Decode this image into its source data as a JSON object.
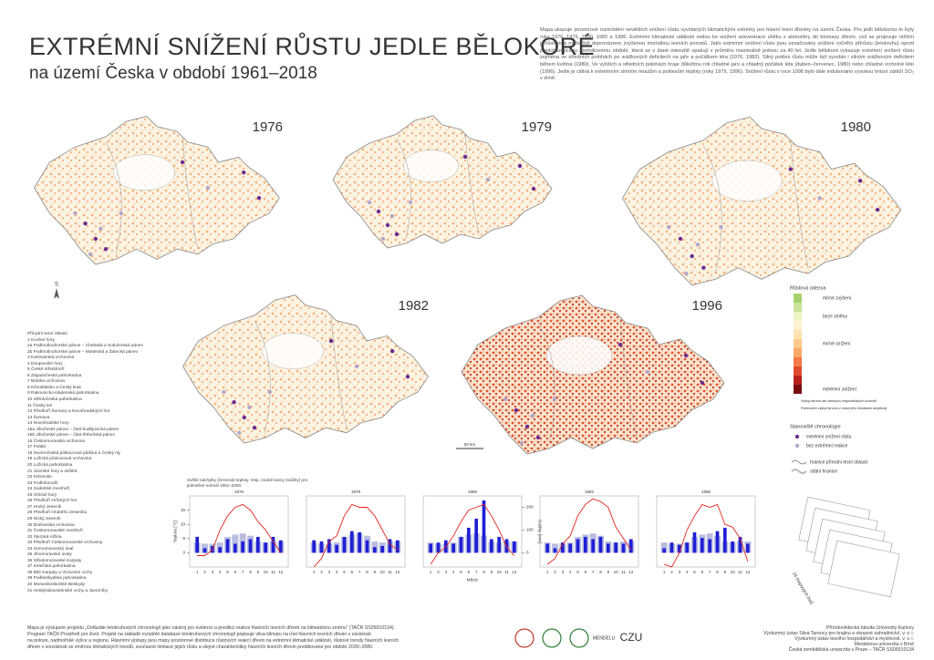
{
  "header": {
    "title": "EXTRÉMNÍ SNÍŽENÍ RŮSTU JEDLE BĚLOKORÉ",
    "subtitle": "na území Česka v období 1961–2018"
  },
  "description": "Mapa ukazuje prostorové rozmístění nevětších snížení růstu vyvolaných klimatickými extrémy pro hlavní lesní dřeviny na území Česka. Pro jedli bělokorou to byly roky 1976, 1979, 1980, 1982 a 1996. Extrémní klimatické události vedou ke snížení sekvestrace uhlíku z atmosféry do biomasy dřevin, což se projevuje nižším přírůstem a může být doprovázeno zvýšenou mortalitou lesních porostů. Jako extrémní snížení růstu jsou označovány snížení ročního přírůstu (letokruhu) oproti předcházejícímu normálovému období, která se v dané intenzitě opakují v průměru maximálně jednou za 40 let. Jedle bělokorá vykazuje extrémní snížení růstu zejména ve středních polohách po srážkových deficitech na jaře a počátkem léta (1976, 1982). Silný pokles růstu může být vyvolán i silným srážkovým deficitem během května (1980). Ve vyšších a středních polohách hraje důležitou roli chladné jaro a chladný počátek léta (duben–červenec, 1980) nebo chladné vrcholné léto (1996). Jedle je citlivá k extrémním zimním mrazům a poklesům teploty (roky 1979, 1996). Snížení růstu v roce 1996 bylo dále indukováno vysokou imisní zátěží SO₂ v zimě.",
  "maps": [
    {
      "year": "1976"
    },
    {
      "year": "1979"
    },
    {
      "year": "1980"
    },
    {
      "year": "1982"
    },
    {
      "year": "1996"
    }
  ],
  "north": "S",
  "scale": "50 km",
  "regions": {
    "title": "Přírodní lesní oblasti",
    "items": [
      "1 Krušné hory",
      "2a Podkrušnohorské pánve – Chebská a Sokolovská pánev",
      "2b Podkrušnohorské pánve – Mostecká a Žatecká pánev",
      "3 Karlovarská vrchovina",
      "4 Doupovské hory",
      "5 České středohoří",
      "6 Západočeská pahorkatina",
      "7 Brdská vrchovina",
      "8 Křivoklátsko a Český kras",
      "9 Rakovnicko-kladenská pahorkatina",
      "10 Středočeská pahorkatina",
      "11 Český les",
      "12 Předhoří Šumavy a Novohradských hor",
      "13 Šumava",
      "14 Novohradské hory",
      "15a Jihočeské pánve – část budějovická pánev",
      "15b Jihočeské pánve – část třeboňská pánev",
      "16 Českomoravská vrchovina",
      "17 Polabí",
      "18 Severočeská pískovcová plošina a Český ráj",
      "19 Lužická pískovcová vrchovina",
      "20 Lužická pahorkatina",
      "21 Jizerské hory a Ještěd",
      "22 Krkonoše",
      "23 Podkrkonoší",
      "24 Sudetské mezihoří",
      "25 Orlické hory",
      "26 Předhoří Orlických hor",
      "27 Hrubý Jeseník",
      "28 Předhoří Hrubého Jeseníku",
      "29 Nízký Jeseník",
      "30 Drahanská vrchovina",
      "31 Českomoravské mezihoří",
      "32 Slezská nížina",
      "33 Předhoří Českomoravské vrchoviny",
      "34 Hornomoravský úval",
      "35 Jihomoravské úvaly",
      "36 Středomoravské Karpaty",
      "37 Kelečská pahorkatina",
      "38 Bílé Karpaty a Vizovické vrchy",
      "39 Podbeskydská pahorkatina",
      "40 Moravskoslezské Beskydy",
      "41 Hostýnskovsetínské vrchy a Javorníky"
    ]
  },
  "legend": {
    "title": "Růstová odezva",
    "response": [
      "mírné zvýšení",
      "beze změny",
      "mírné snížení",
      "extrémní snížení"
    ],
    "colors": [
      "#a5d36b",
      "#c9e39a",
      "#eef3c4",
      "#fdf3d0",
      "#fde3b0",
      "#fcc98a",
      "#f9a866",
      "#f27a45",
      "#e04a2c",
      "#b8201c",
      "#7a0c12"
    ],
    "note1": "Výskyt stromu ale zdravých hospodářských souborů",
    "note2": "Potenciální výskyt stromu v rámci jeho klimatické amplitudy",
    "chron_title": "Stanoviště chronologie",
    "chron": [
      {
        "label": "extrémní snížení růstu",
        "color": "#6a2c91"
      },
      {
        "label": "bez extrémní reakce",
        "color": "#b3a6cc"
      }
    ],
    "lines": [
      "hranice přírodní lesní oblasti",
      "státní hranice"
    ]
  },
  "climate": {
    "note": "Světlé odchylky (červená) teploty, resp. modré barvy (srážky) pro jednotlivé normál 1961–2000.",
    "x_label": "Měsíc",
    "y_label": "Teplota [°C]",
    "y2_label": "Srážky [mm]",
    "months": [
      "1",
      "2",
      "3",
      "4",
      "5",
      "6",
      "7",
      "8",
      "9",
      "10",
      "11",
      "12"
    ],
    "ylim": [
      -5,
      20
    ],
    "yticks": [
      0,
      5,
      10,
      15
    ],
    "y2lim": [
      -62.5,
      250
    ],
    "y2ticks": [
      0,
      100,
      200
    ],
    "normal_precipitation": [
      45,
      40,
      40,
      45,
      70,
      80,
      85,
      75,
      50,
      45,
      50,
      50
    ],
    "panels": [
      {
        "year": "1976",
        "temperature": [
          -1,
          -1,
          1,
          8,
          13,
          16,
          17,
          15,
          11,
          8,
          4,
          0
        ],
        "precipitation": [
          70,
          20,
          30,
          25,
          60,
          40,
          50,
          60,
          70,
          45,
          70,
          55
        ]
      },
      {
        "year": "1979",
        "temperature": [
          -5,
          -2,
          4,
          6,
          13,
          17,
          16,
          16,
          13,
          8,
          3,
          1
        ],
        "precipitation": [
          55,
          50,
          60,
          35,
          70,
          95,
          90,
          55,
          25,
          30,
          60,
          55
        ]
      },
      {
        "year": "1980",
        "temperature": [
          -4,
          0,
          2,
          6,
          11,
          15,
          16,
          17,
          13,
          8,
          2,
          -1
        ],
        "precipitation": [
          40,
          45,
          55,
          40,
          70,
          110,
          150,
          230,
          60,
          70,
          60,
          50
        ]
      },
      {
        "year": "1982",
        "temperature": [
          -4,
          -2,
          3,
          6,
          13,
          17,
          19,
          18,
          16,
          9,
          5,
          1
        ],
        "precipitation": [
          40,
          20,
          45,
          40,
          60,
          70,
          60,
          70,
          40,
          45,
          40,
          60
        ]
      },
      {
        "year": "1996",
        "temperature": [
          -4,
          -5,
          0,
          8,
          13,
          17,
          16,
          17,
          10,
          9,
          5,
          -3
        ],
        "precipitation": [
          20,
          45,
          35,
          45,
          90,
          65,
          60,
          95,
          110,
          50,
          70,
          40
        ]
      }
    ],
    "temp_color": "#e0231c",
    "precip_color": "#1f1fd6",
    "normal_color": "#b9bde0"
  },
  "overview": "16 mapových listů",
  "footer": {
    "left": [
      "Mapa je výstupem projektu „Dofázáte letokruhových chronologií jako nástroj pro evidenci a predikci reakce hlavních lesních dřevin na klimatickou změnu“ (TAČR SS05010134).",
      "Program TAČR Prostředí pro život. Projekt na základě rozsáhlé databáze letokruhových chronologií popisuje vliva klimatu na růst hlavních lesních dřevin v závislosti",
      "na poloze, nadmořské výšce a regionu. Hlavními výstupy jsou mapy prostorové distribuce růstových reakcí dřevin na extrémní klimatické události, růstové trendy hlavních lesních",
      "dřevin v souvislosti se změnou klimatických trendů, současné limitace jejich růstu a stejné charakteristiky hlavních lesních dřevin predikované pro období 2030–2080."
    ],
    "right": [
      "Přírodovědecká fakulta Univerzity Karlovy",
      "Výzkumný ústav Silva Taroucy pro krajinu a okrasné zahradnictví, v. v. i.",
      "Výzkumný ústav lesního hospodářství a myslivosti, v. v. i.",
      "Mendelova univerzita v Brně",
      "Česká zemědělská univerzita v Praze – TAČR SS05010134"
    ],
    "logos": [
      "MENDELU",
      "CZU"
    ]
  }
}
